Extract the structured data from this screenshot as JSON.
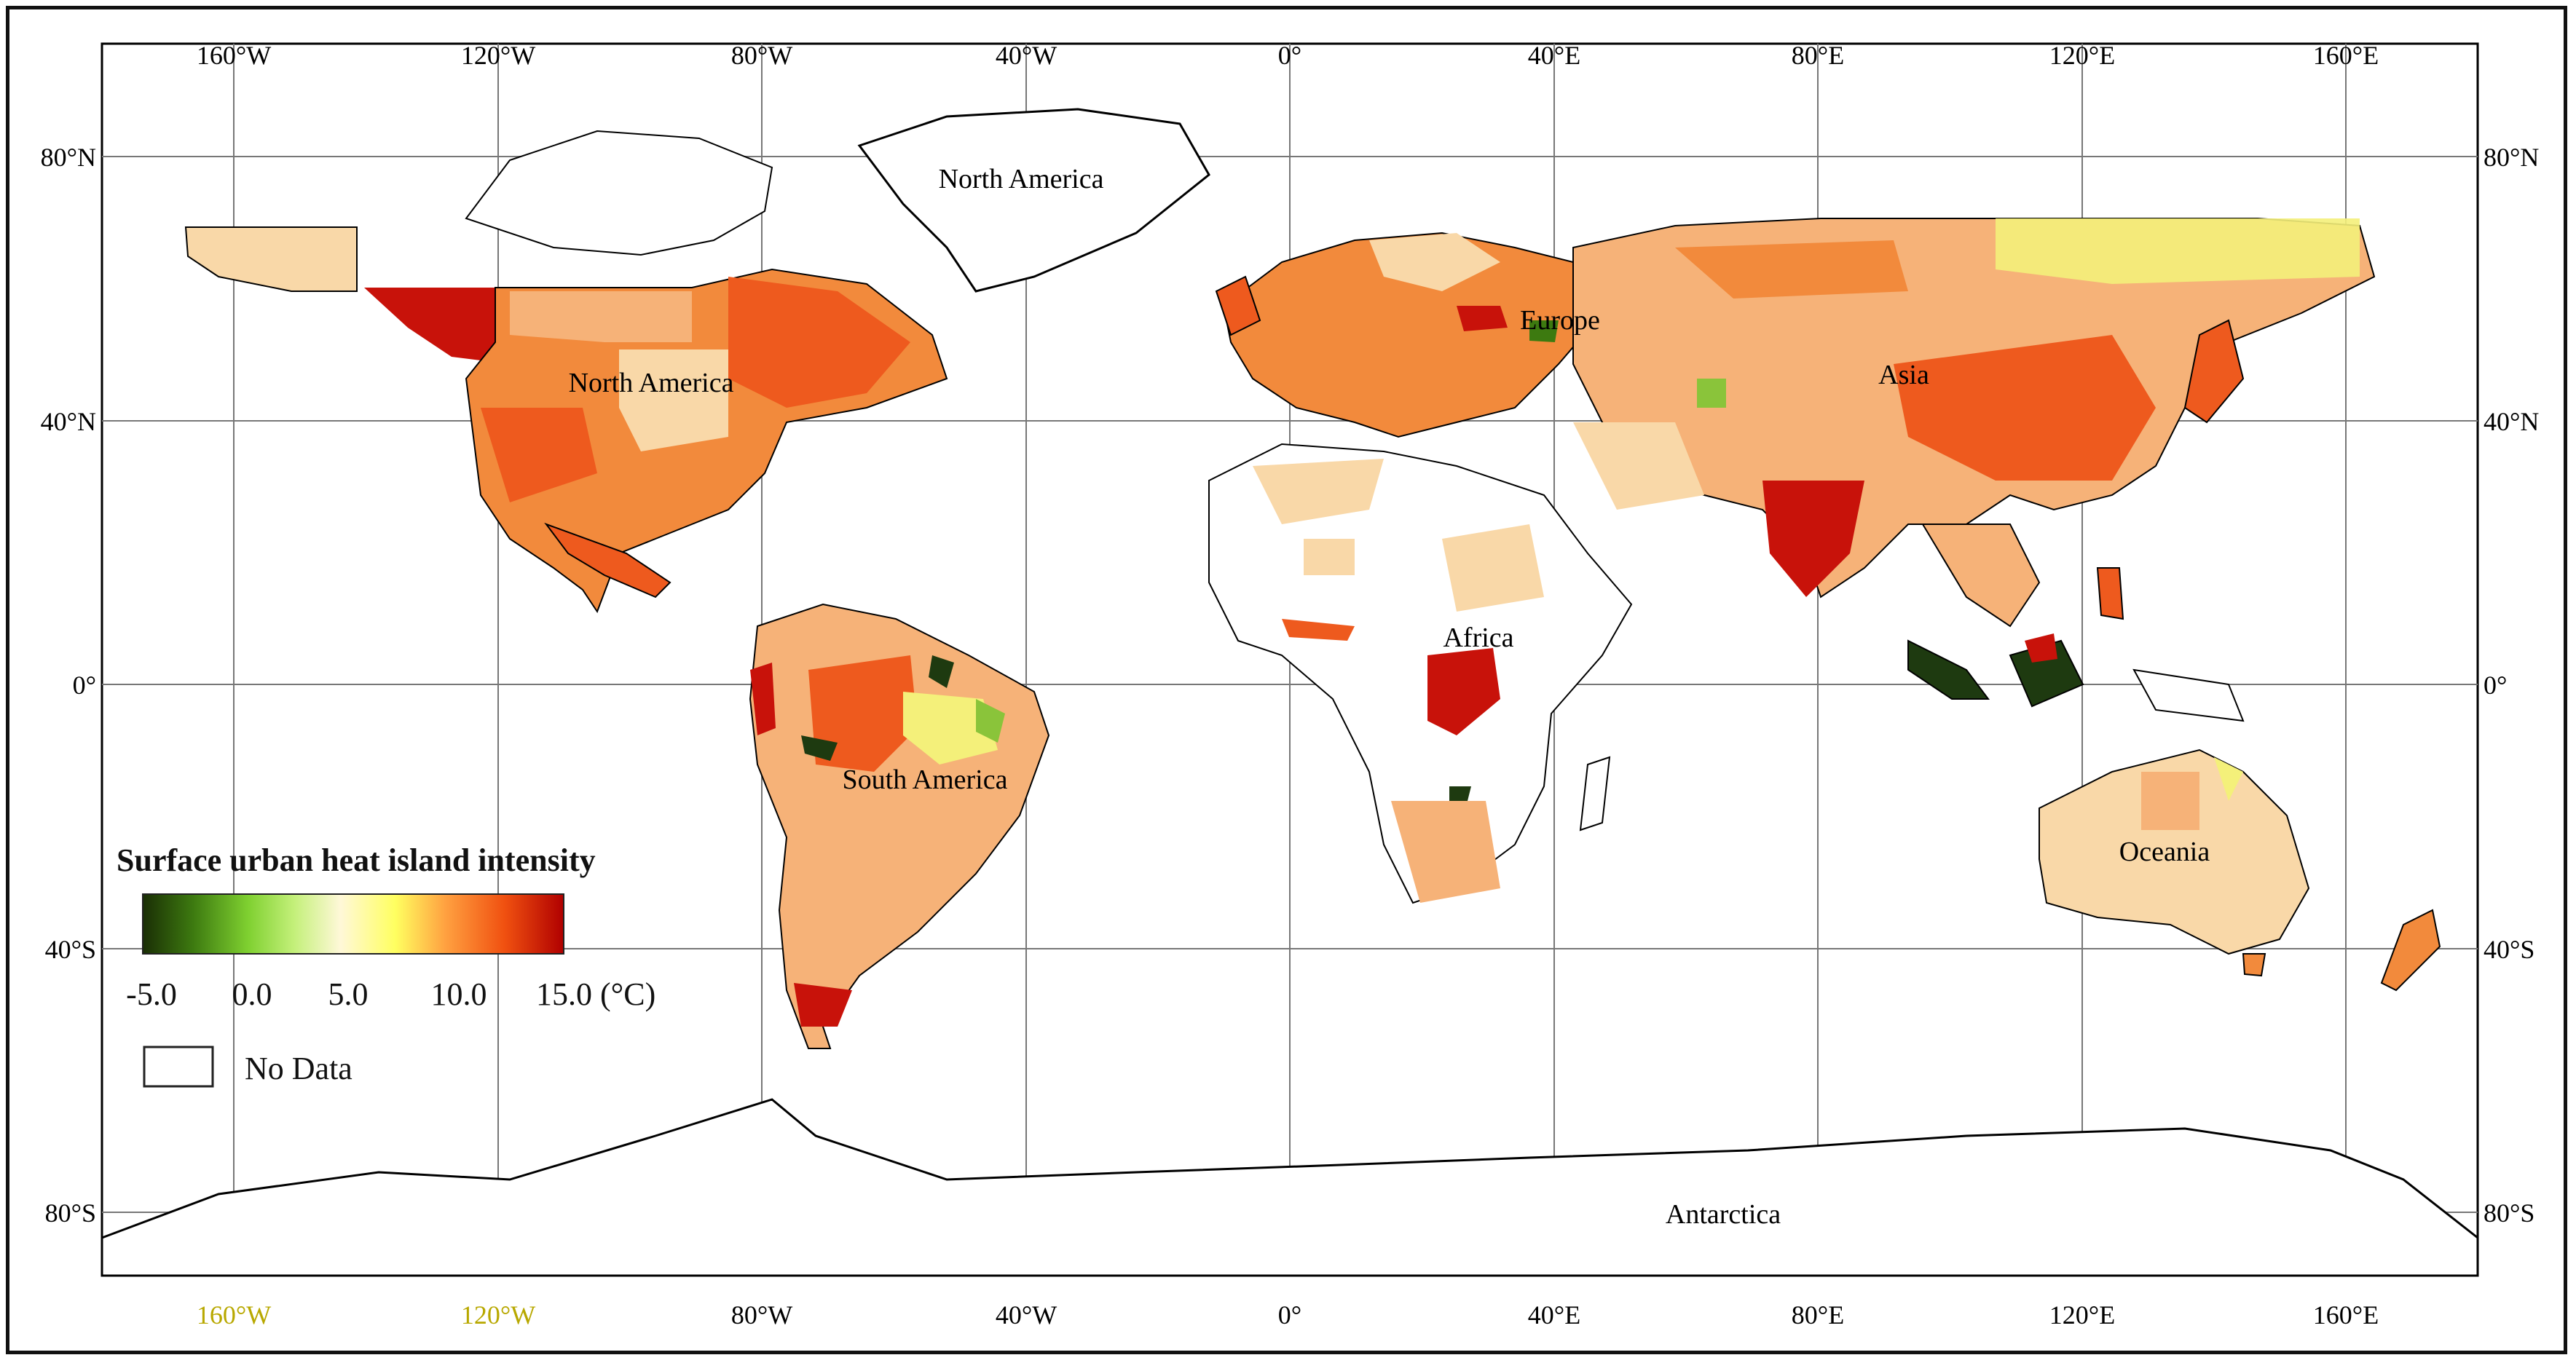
{
  "map": {
    "top_lon_labels": [
      "160°W",
      "120°W",
      "80°W",
      "40°W",
      "0°",
      "40°E",
      "80°E",
      "120°E",
      "160°E"
    ],
    "bottom_lon_labels": [
      "160°W",
      "120°W",
      "80°W",
      "40°W",
      "0°",
      "40°E",
      "80°E",
      "120°E",
      "160°E"
    ],
    "left_lat_labels": [
      "80°N",
      "40°N",
      "0°",
      "40°S",
      "80°S"
    ],
    "right_lat_labels": [
      "80°N",
      "40°N",
      "0°",
      "40°S",
      "80°S"
    ],
    "continents": {
      "north_america_top": "North America",
      "north_america": "North America",
      "south_america": "South America",
      "europe": "Europe",
      "africa": "Africa",
      "asia": "Asia",
      "oceania": "Oceania",
      "antarctica": "Antarctica"
    },
    "colors": {
      "very_high": "#c8120a",
      "high": "#ee5a1e",
      "mid_high": "#f28a3c",
      "mid": "#f6b278",
      "low": "#f9d8a8",
      "yellow": "#f4f07a",
      "green": "#8ac43a",
      "dark": "#1e3a10",
      "no_data": "#ffffff"
    }
  },
  "legend": {
    "title": "Surface urban heat island intensity",
    "tick_labels": [
      "-5.0",
      "0.0",
      "5.0",
      "10.0",
      "15.0 (°C)"
    ],
    "no_data_label": "No Data",
    "gradient": [
      "#1a2e05",
      "#3d7a10",
      "#7fd030",
      "#c4f07a",
      "#fff8d8",
      "#ffff60",
      "#ffa040",
      "#f05010",
      "#b00000"
    ]
  }
}
